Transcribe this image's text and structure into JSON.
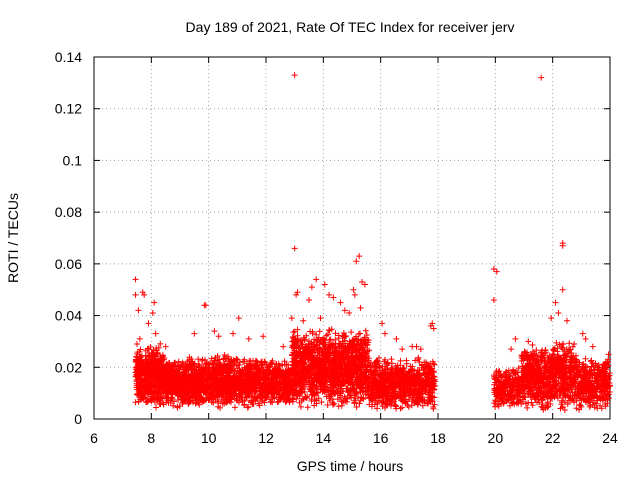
{
  "chart_data": {
    "type": "scatter",
    "title": "Day 189 of 2021, Rate Of TEC Index for receiver jerv",
    "xlabel": "GPS time / hours",
    "ylabel": "ROTI / TECUs",
    "xlim": [
      6,
      24
    ],
    "ylim": [
      0,
      0.14
    ],
    "x_ticks": [
      6,
      8,
      10,
      12,
      14,
      16,
      18,
      20,
      22,
      24
    ],
    "x_tick_labels": [
      "6",
      "8",
      "10",
      "12",
      "14",
      "16",
      "18",
      "20",
      "22",
      "24"
    ],
    "y_ticks": [
      0,
      0.02,
      0.04,
      0.06,
      0.08,
      0.1,
      0.12,
      0.14
    ],
    "y_tick_labels": [
      "0",
      "0.02",
      "0.04",
      "0.06",
      "0.08",
      "0.1",
      "0.12",
      "0.14"
    ],
    "grid": true,
    "marker": "+",
    "color": "#ff0000",
    "series": [
      {
        "name": "ROTI",
        "points": [
          [
            7.45,
            0.054
          ],
          [
            7.45,
            0.048
          ],
          [
            7.5,
            0.029
          ],
          [
            7.55,
            0.042
          ],
          [
            7.6,
            0.031
          ],
          [
            7.7,
            0.049
          ],
          [
            7.75,
            0.048
          ],
          [
            7.9,
            0.037
          ],
          [
            8.05,
            0.041
          ],
          [
            8.1,
            0.045
          ],
          [
            8.15,
            0.033
          ],
          [
            8.5,
            0.028
          ],
          [
            9.5,
            0.033
          ],
          [
            9.85,
            0.044
          ],
          [
            9.9,
            0.044
          ],
          [
            10.2,
            0.034
          ],
          [
            10.35,
            0.032
          ],
          [
            10.85,
            0.033
          ],
          [
            11.05,
            0.039
          ],
          [
            11.4,
            0.031
          ],
          [
            11.9,
            0.032
          ],
          [
            12.6,
            0.028
          ],
          [
            12.9,
            0.039
          ],
          [
            13.0,
            0.133
          ],
          [
            13.0,
            0.066
          ],
          [
            13.05,
            0.048
          ],
          [
            13.1,
            0.049
          ],
          [
            13.3,
            0.038
          ],
          [
            13.5,
            0.046
          ],
          [
            13.6,
            0.051
          ],
          [
            13.75,
            0.054
          ],
          [
            13.9,
            0.039
          ],
          [
            14.05,
            0.052
          ],
          [
            14.2,
            0.048
          ],
          [
            14.35,
            0.047
          ],
          [
            14.6,
            0.045
          ],
          [
            14.75,
            0.042
          ],
          [
            14.9,
            0.041
          ],
          [
            15.05,
            0.05
          ],
          [
            15.1,
            0.048
          ],
          [
            15.15,
            0.061
          ],
          [
            15.25,
            0.063
          ],
          [
            15.35,
            0.053
          ],
          [
            15.45,
            0.052
          ],
          [
            15.3,
            0.043
          ],
          [
            16.05,
            0.037
          ],
          [
            16.15,
            0.033
          ],
          [
            16.55,
            0.031
          ],
          [
            16.75,
            0.027
          ],
          [
            17.1,
            0.028
          ],
          [
            17.25,
            0.028
          ],
          [
            17.4,
            0.027
          ],
          [
            17.75,
            0.036
          ],
          [
            17.8,
            0.037
          ],
          [
            17.85,
            0.035
          ],
          [
            19.95,
            0.058
          ],
          [
            19.95,
            0.046
          ],
          [
            20.05,
            0.057
          ],
          [
            20.55,
            0.027
          ],
          [
            20.7,
            0.031
          ],
          [
            21.15,
            0.03
          ],
          [
            21.6,
            0.132
          ],
          [
            21.95,
            0.039
          ],
          [
            22.1,
            0.045
          ],
          [
            22.2,
            0.041
          ],
          [
            22.35,
            0.068
          ],
          [
            22.35,
            0.067
          ],
          [
            22.35,
            0.05
          ],
          [
            22.5,
            0.038
          ],
          [
            22.75,
            0.029
          ],
          [
            23.05,
            0.033
          ],
          [
            23.15,
            0.031
          ],
          [
            23.4,
            0.028
          ],
          [
            23.85,
            0.022
          ],
          [
            23.95,
            0.025
          ]
        ],
        "dense_regions": [
          {
            "x_range": [
              7.45,
              7.95
            ],
            "y_range": [
              0.005,
              0.028
            ],
            "count": 260
          },
          {
            "x_range": [
              7.95,
              8.45
            ],
            "y_range": [
              0.004,
              0.03
            ],
            "count": 300
          },
          {
            "x_range": [
              8.45,
              10.0
            ],
            "y_range": [
              0.004,
              0.024
            ],
            "count": 700
          },
          {
            "x_range": [
              10.0,
              12.0
            ],
            "y_range": [
              0.004,
              0.025
            ],
            "count": 800
          },
          {
            "x_range": [
              12.0,
              12.9
            ],
            "y_range": [
              0.005,
              0.023
            ],
            "count": 350
          },
          {
            "x_range": [
              12.9,
              15.6
            ],
            "y_range": [
              0.004,
              0.035
            ],
            "count": 1400
          },
          {
            "x_range": [
              15.6,
              17.9
            ],
            "y_range": [
              0.003,
              0.024
            ],
            "count": 800
          },
          {
            "x_range": [
              19.95,
              20.9
            ],
            "y_range": [
              0.004,
              0.02
            ],
            "count": 250
          },
          {
            "x_range": [
              20.9,
              22.9
            ],
            "y_range": [
              0.003,
              0.03
            ],
            "count": 800
          },
          {
            "x_range": [
              22.9,
              24.0
            ],
            "y_range": [
              0.003,
              0.024
            ],
            "count": 350
          }
        ]
      }
    ]
  }
}
